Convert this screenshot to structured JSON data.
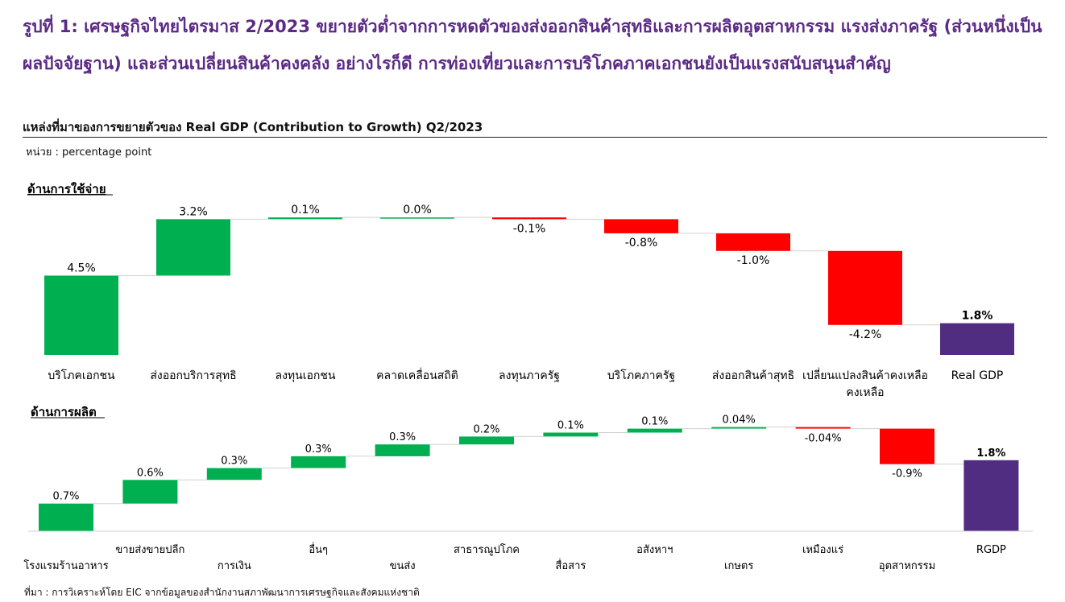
{
  "headline": "รูปที่ 1: เศรษฐกิจไทยไตรมาส 2/2023 ขยายตัวต่ำจากการหดตัวของส่งออกสินค้าสุทธิและการผลิตอุตสาหกรรม แรงส่งภาครัฐ (ส่วนหนึ่งเป็นผลปัจจัยฐาน) และส่วนเปลี่ยนสินค้าคงคลัง อย่างไรก็ดี การท่องเที่ยวและการบริโภคภาคเอกชนยังเป็นแรงสนับสนุนสำคัญ",
  "subtitle": "แหล่งที่มาของการขยายตัวของ Real GDP (Contribution to Growth) Q2/2023",
  "unit": "หน่วย : percentage point",
  "source": "ที่มา : การวิเคราะห์โดย EIC จากข้อมูลของสำนักงานสภาพัฒนาการเศรษฐกิจและสังคมแห่งชาติ",
  "colors": {
    "positive": "#00b050",
    "negative": "#ff0000",
    "total": "#512d82",
    "title": "#5b2a86"
  },
  "chart_data": [
    {
      "type": "bar",
      "subtype": "waterfall",
      "panel_label": "ด้านการใช้จ่าย",
      "categories": [
        "บริโภคเอกชน",
        "ส่งออกบริการสุทธิ",
        "ลงทุนเอกชน",
        "คลาดเคลื่อนสถิติ",
        "ลงทุนภาครัฐ",
        "บริโภคภาครัฐ",
        "ส่งออกสินค้าสุทธิ",
        "เปลี่ยนแปลงสินค้าคงเหลือ",
        "Real GDP"
      ],
      "category_lines": [
        [
          "บริโภคเอกชน"
        ],
        [
          "ส่งออกบริการสุทธิ"
        ],
        [
          "ลงทุนเอกชน"
        ],
        [
          "คลาดเคลื่อนสถิติ"
        ],
        [
          "ลงทุนภาครัฐ"
        ],
        [
          "บริโภคภาครัฐ"
        ],
        [
          "ส่งออกสินค้าสุทธิ"
        ],
        [
          "เปลี่ยนแปลงสินค้าคงเหลือ",
          "คงเหลือ"
        ],
        [
          "Real GDP"
        ]
      ],
      "values": [
        4.5,
        3.2,
        0.1,
        0.0,
        -0.1,
        -0.8,
        -1.0,
        -4.2,
        1.8
      ],
      "labels": [
        "4.5%",
        "3.2%",
        "0.1%",
        "0.0%",
        "-0.1%",
        "-0.8%",
        "-1.0%",
        "-4.2%",
        "1.8%"
      ],
      "total_index": 8
    },
    {
      "type": "bar",
      "subtype": "waterfall",
      "panel_label": "ด้านการผลิต",
      "categories": [
        "โรงแรมร้านอาหาร",
        "ขายส่งขายปลีก",
        "การเงิน",
        "อื่นๆ",
        "ขนส่ง",
        "สาธารณูปโภค",
        "สื่อสาร",
        "อสังหาฯ",
        "เกษตร",
        "เหมืองแร่",
        "อุตสาหกรรม",
        "RGDP"
      ],
      "values": [
        0.7,
        0.6,
        0.3,
        0.3,
        0.3,
        0.2,
        0.1,
        0.1,
        0.04,
        -0.04,
        -0.9,
        1.8
      ],
      "labels": [
        "0.7%",
        "0.6%",
        "0.3%",
        "0.3%",
        "0.3%",
        "0.2%",
        "0.1%",
        "0.1%",
        "0.04%",
        "-0.04%",
        "-0.9%",
        "1.8%"
      ],
      "total_index": 11
    }
  ]
}
